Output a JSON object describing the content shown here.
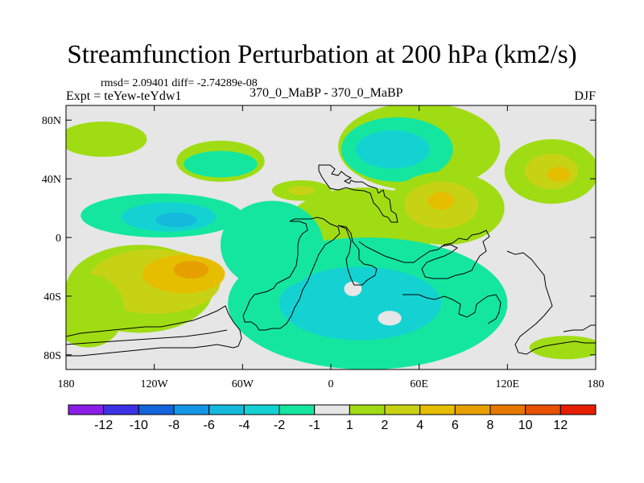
{
  "chart_data": {
    "type": "heatmap",
    "title": "Streamfunction Perturbation at 200 hPa (km2/s)",
    "stats": "rmsd= 2.09401 diff= -2.74289e-08",
    "experiment": "Expt = teYew-teYdw1",
    "center_label": "370_0_MaBP - 370_0_MaBP",
    "season": "DJF",
    "xlim": [
      -180,
      180
    ],
    "ylim": [
      -90,
      90
    ],
    "x_ticks": [
      {
        "value": -180,
        "label": "180"
      },
      {
        "value": -120,
        "label": "120W"
      },
      {
        "value": -60,
        "label": "60W"
      },
      {
        "value": 0,
        "label": "0"
      },
      {
        "value": 60,
        "label": "60E"
      },
      {
        "value": 120,
        "label": "120E"
      },
      {
        "value": 180,
        "label": "180"
      }
    ],
    "y_ticks": [
      {
        "value": 80,
        "label": "80N"
      },
      {
        "value": 40,
        "label": "40N"
      },
      {
        "value": 0,
        "label": "0"
      },
      {
        "value": -40,
        "label": "40S"
      },
      {
        "value": -80,
        "label": "80S"
      }
    ],
    "colorbar": {
      "colors": [
        "#8a1ee6",
        "#3c32e6",
        "#1464dc",
        "#1496e6",
        "#14b9dc",
        "#14d2d2",
        "#14e6a0",
        "#e6e6e6",
        "#a0dc14",
        "#c8d214",
        "#e6be00",
        "#e6a000",
        "#e67800",
        "#e65000",
        "#e61e00"
      ],
      "labels": [
        "-12",
        "-10",
        "-8",
        "-6",
        "-4",
        "-2",
        "-1",
        "1",
        "2",
        "4",
        "6",
        "8",
        "10",
        "12"
      ]
    },
    "field": {
      "background_level": 0,
      "regions": [
        {
          "level": 1.5,
          "lon": -155,
          "lat": 67,
          "rlon": 30,
          "rlat": 12
        },
        {
          "level": 1.5,
          "lon": -75,
          "lat": 52,
          "rlon": 30,
          "rlat": 14
        },
        {
          "level": -1.5,
          "lon": -75,
          "lat": 50,
          "rlon": 25,
          "rlat": 9
        },
        {
          "level": 1.5,
          "lon": -20,
          "lat": 32,
          "rlon": 20,
          "rlat": 7
        },
        {
          "level": 3,
          "lon": -20,
          "lat": 32,
          "rlon": 9,
          "rlat": 3
        },
        {
          "level": 1.5,
          "lon": 60,
          "lat": 62,
          "rlon": 55,
          "rlat": 30
        },
        {
          "level": -1.5,
          "lon": 45,
          "lat": 60,
          "rlon": 38,
          "rlat": 22
        },
        {
          "level": -3,
          "lon": 42,
          "lat": 60,
          "rlon": 25,
          "rlat": 13
        },
        {
          "level": 1.5,
          "lon": 22,
          "lat": 8,
          "rlon": 52,
          "rlat": 26
        },
        {
          "level": 1.5,
          "lon": 78,
          "lat": 20,
          "rlon": 40,
          "rlat": 25
        },
        {
          "level": 3,
          "lon": 75,
          "lat": 22,
          "rlon": 25,
          "rlat": 16
        },
        {
          "level": 5,
          "lon": 75,
          "lat": 25,
          "rlon": 9,
          "rlat": 6
        },
        {
          "level": 1.5,
          "lon": 150,
          "lat": 45,
          "rlon": 32,
          "rlat": 22
        },
        {
          "level": 3,
          "lon": 150,
          "lat": 45,
          "rlon": 18,
          "rlat": 12
        },
        {
          "level": 5,
          "lon": 155,
          "lat": 43,
          "rlon": 8,
          "rlat": 5
        },
        {
          "level": -1.5,
          "lon": -115,
          "lat": 15,
          "rlon": 55,
          "rlat": 15
        },
        {
          "level": -3,
          "lon": -110,
          "lat": 14,
          "rlon": 32,
          "rlat": 10
        },
        {
          "level": -5,
          "lon": -105,
          "lat": 12,
          "rlon": 14,
          "rlat": 5
        },
        {
          "level": 1.5,
          "lon": -130,
          "lat": -35,
          "rlon": 50,
          "rlat": 30
        },
        {
          "level": 3,
          "lon": -120,
          "lat": -30,
          "rlon": 45,
          "rlat": 22
        },
        {
          "level": 5,
          "lon": -100,
          "lat": -25,
          "rlon": 28,
          "rlat": 13
        },
        {
          "level": 7,
          "lon": -95,
          "lat": -22,
          "rlon": 12,
          "rlat": 6
        },
        {
          "level": 1.5,
          "lon": -165,
          "lat": -50,
          "rlon": 25,
          "rlat": 25
        },
        {
          "level": -1.5,
          "lon": 25,
          "lat": -45,
          "rlon": 95,
          "rlat": 45
        },
        {
          "level": -3,
          "lon": 20,
          "lat": -45,
          "rlon": 55,
          "rlat": 25
        },
        {
          "level": -1.5,
          "lon": -40,
          "lat": -5,
          "rlon": 35,
          "rlat": 30
        },
        {
          "level": 0,
          "lon": 15,
          "lat": -35,
          "rlon": 6,
          "rlat": 5
        },
        {
          "level": 0,
          "lon": 40,
          "lat": -55,
          "rlon": 8,
          "rlat": 5
        },
        {
          "level": 1.5,
          "lon": 160,
          "lat": -75,
          "rlon": 25,
          "rlat": 8
        }
      ]
    }
  }
}
